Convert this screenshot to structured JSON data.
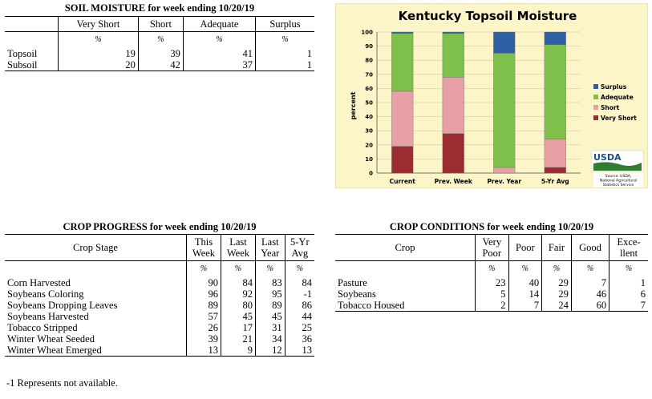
{
  "soil_moisture": {
    "title": "SOIL MOISTURE for week ending 10/20/19",
    "columns": [
      "Very Short",
      "Short",
      "Adequate",
      "Surplus"
    ],
    "units": [
      "%",
      "%",
      "%",
      "%"
    ],
    "rows": [
      {
        "label": "Topsoil",
        "values": [
          "19",
          "39",
          "41",
          "1"
        ]
      },
      {
        "label": "Subsoil",
        "values": [
          "20",
          "42",
          "37",
          "1"
        ]
      }
    ]
  },
  "crop_progress": {
    "title": "CROP PROGRESS for week ending 10/20/19",
    "stage_header": "Crop Stage",
    "columns": [
      [
        "This",
        "Week"
      ],
      [
        "Last",
        "Week"
      ],
      [
        "Last",
        "Year"
      ],
      [
        "5-Yr",
        "Avg"
      ]
    ],
    "units": [
      "%",
      "%",
      "%",
      "%"
    ],
    "rows": [
      {
        "label": "Corn Harvested",
        "values": [
          "90",
          "84",
          "83",
          "84"
        ]
      },
      {
        "label": "Soybeans Coloring",
        "values": [
          "96",
          "92",
          "95",
          "-1"
        ]
      },
      {
        "label": "Soybeans Dropping Leaves",
        "values": [
          "89",
          "80",
          "89",
          "86"
        ]
      },
      {
        "label": "Soybeans Harvested",
        "values": [
          "57",
          "45",
          "45",
          "44"
        ]
      },
      {
        "label": "Tobacco Stripped",
        "values": [
          "26",
          "17",
          "31",
          "25"
        ]
      },
      {
        "label": "Winter Wheat Seeded",
        "values": [
          "39",
          "21",
          "34",
          "36"
        ]
      },
      {
        "label": "Winter Wheat Emerged",
        "values": [
          "13",
          "9",
          "12",
          "13"
        ]
      }
    ],
    "footnote": "-1 Represents not available."
  },
  "crop_conditions": {
    "title": "CROP CONDITIONS for week ending 10/20/19",
    "crop_header": "Crop",
    "columns": [
      [
        "Very",
        "Poor"
      ],
      [
        "Poor"
      ],
      [
        "Fair"
      ],
      [
        "Good"
      ],
      [
        "Exce-",
        "llent"
      ]
    ],
    "units": [
      "%",
      "%",
      "%",
      "%",
      "%"
    ],
    "rows": [
      {
        "label": "Pasture",
        "values": [
          "23",
          "40",
          "29",
          "7",
          "1"
        ]
      },
      {
        "label": "Soybeans",
        "values": [
          "5",
          "14",
          "29",
          "46",
          "6"
        ]
      },
      {
        "label": "Tobacco Housed",
        "values": [
          "2",
          "7",
          "24",
          "60",
          "7"
        ]
      }
    ]
  },
  "chart_data": {
    "type": "bar",
    "stacked": true,
    "title": "Kentucky Topsoil Moisture",
    "ylabel": "percent",
    "ylim": [
      0,
      100
    ],
    "yticks": [
      0,
      10,
      20,
      30,
      40,
      50,
      60,
      70,
      80,
      90,
      100
    ],
    "categories": [
      "Current",
      "Prev. Week",
      "Prev. Year",
      "5-Yr Avg"
    ],
    "series": [
      {
        "name": "Very Short",
        "color": "#9b2d30",
        "values": [
          19,
          28,
          0,
          4
        ]
      },
      {
        "name": "Short",
        "color": "#e6a0a6",
        "values": [
          39,
          40,
          4,
          20
        ]
      },
      {
        "name": "Adequate",
        "color": "#7ec04a",
        "values": [
          41,
          31,
          81,
          67
        ]
      },
      {
        "name": "Surplus",
        "color": "#2e5fa3",
        "values": [
          1,
          1,
          15,
          9
        ]
      }
    ],
    "legend_order": [
      "Surplus",
      "Adequate",
      "Short",
      "Very Short"
    ],
    "legend_position": "right",
    "background": "#fbf5c8",
    "logo_text": "USDA",
    "source_text": [
      "Source: USDA,",
      "National Agricultural",
      "Statistics Service"
    ]
  }
}
